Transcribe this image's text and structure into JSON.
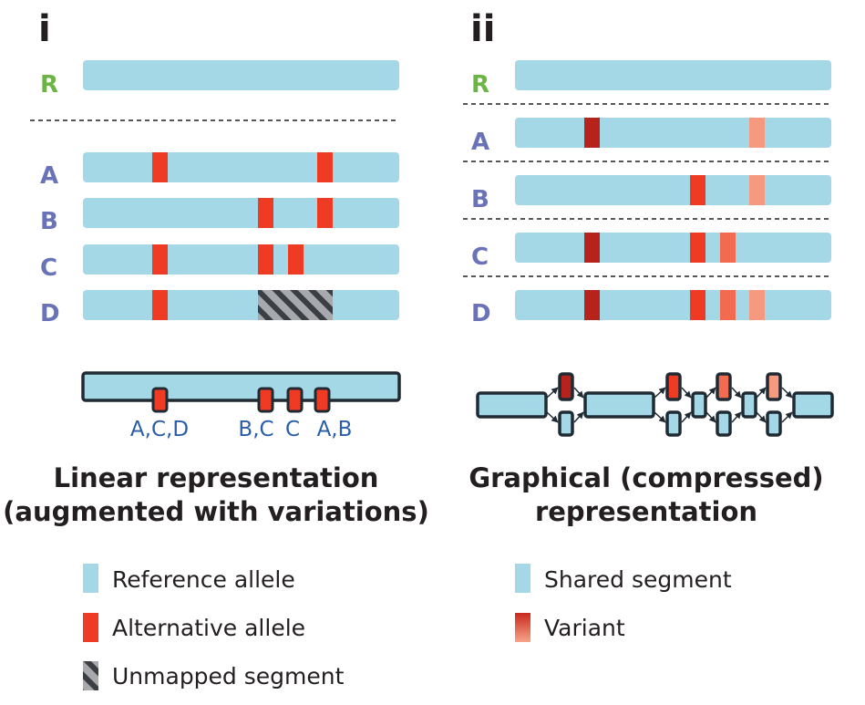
{
  "colors": {
    "reference": "#a5d8e6",
    "alternative": "#ef3b24",
    "variant_dark": "#b5231c",
    "variant_mid": "#ef3b24",
    "variant_light": "#f59a7f",
    "label_r": "#6bb445",
    "label_sample": "#6b73b8",
    "position_text": "#2a5ea8",
    "outline": "#1f2a33"
  },
  "panel_i": {
    "label": "i",
    "rows": [
      {
        "label": "R",
        "color_key": "label_r"
      },
      {
        "label": "A",
        "color_key": "label_sample"
      },
      {
        "label": "B",
        "color_key": "label_sample"
      },
      {
        "label": "C",
        "color_key": "label_sample"
      },
      {
        "label": "D",
        "color_key": "label_sample"
      }
    ],
    "positions": [
      "A,C,D",
      "B,C",
      "C",
      "A,B"
    ],
    "caption": [
      "Linear representation",
      "(augmented with variations)"
    ]
  },
  "panel_ii": {
    "label": "ii",
    "rows": [
      {
        "label": "R",
        "color_key": "label_r"
      },
      {
        "label": "A",
        "color_key": "label_sample"
      },
      {
        "label": "B",
        "color_key": "label_sample"
      },
      {
        "label": "C",
        "color_key": "label_sample"
      },
      {
        "label": "D",
        "color_key": "label_sample"
      }
    ],
    "caption": [
      "Graphical (compressed)",
      "representation"
    ]
  },
  "legend_left": [
    {
      "label": "Reference allele",
      "swatch": "reference"
    },
    {
      "label": "Alternative allele",
      "swatch": "alternative"
    },
    {
      "label": "Unmapped segment",
      "swatch": "hatched"
    }
  ],
  "legend_right": [
    {
      "label": "Shared segment",
      "swatch": "reference"
    },
    {
      "label": "Variant",
      "swatch": "variant-gradient"
    }
  ]
}
